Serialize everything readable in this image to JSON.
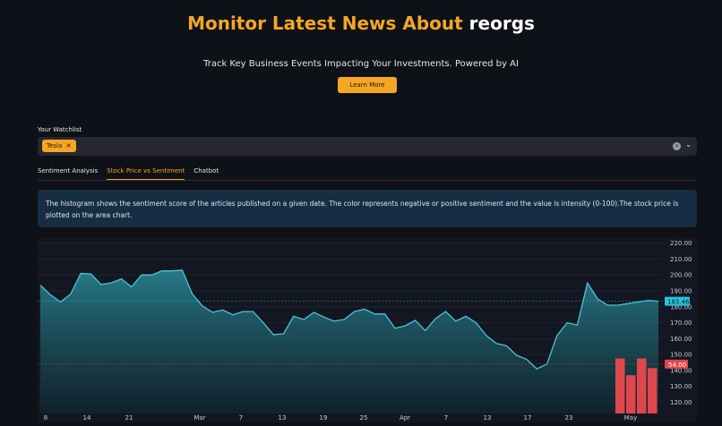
{
  "header": {
    "title_accent": "Monitor Latest News About",
    "title_ticker": "reorgs",
    "subtitle": "Track Key Business Events Impacting Your Investments. Powered by AI",
    "learn_more_label": "Learn More"
  },
  "watchlist": {
    "label": "Your Watchlist",
    "tags": [
      "Tesla"
    ],
    "remove_glyph": "×",
    "clear_glyph": "×",
    "chevron_glyph": "⌄"
  },
  "tabs": [
    {
      "label": "Sentiment Analysis",
      "active": false
    },
    {
      "label": "Stock Price vs Sentiment",
      "active": true
    },
    {
      "label": "Chatbot",
      "active": false
    }
  ],
  "info_text": "The histogram shows the sentiment score of the articles published on a given date. The color represents negative or positive sentiment and the value is intensity (0-100).The stock price is plotted on the area chart.",
  "colors": {
    "accent": "#f5a623",
    "line": "#4fc3d6",
    "negative_bar": "#e0474c",
    "price_marker": "#26c6da",
    "info_bg": "#172d43"
  },
  "chart_data": {
    "type": "area",
    "x_tick_labels": [
      "8",
      "14",
      "21",
      "Mar",
      "7",
      "13",
      "19",
      "25",
      "Apr",
      "7",
      "13",
      "17",
      "23",
      "May"
    ],
    "y_ticks": [
      120,
      130,
      140,
      150,
      160,
      170,
      180,
      190,
      200,
      210,
      220
    ],
    "y_tick_labels": [
      "120.00",
      "130.00",
      "140.00",
      "150.00",
      "160.00",
      "170.00",
      "180.00",
      "190.00",
      "200.00",
      "210.00",
      "220.00"
    ],
    "ylim": [
      113,
      222
    ],
    "price_series": [
      193.5,
      187.5,
      183,
      188,
      201,
      200.5,
      194,
      195,
      197.5,
      192.5,
      200,
      200,
      202.5,
      202.5,
      203,
      188,
      180.5,
      176.5,
      178,
      175,
      177,
      177,
      170,
      162.5,
      163,
      174,
      172,
      176.5,
      173.5,
      171,
      172,
      177,
      178.5,
      175.5,
      175.5,
      166.5,
      168,
      171.5,
      165,
      172.5,
      177,
      171,
      174,
      170,
      162,
      157,
      155.5,
      149.5,
      147,
      141,
      144,
      162,
      170,
      168.5,
      195,
      185,
      181,
      181,
      182,
      183,
      184,
      183.46
    ],
    "last_price": 183.46,
    "last_price_label": "183.46",
    "sentiment_bars": [
      147.5,
      137,
      147.5,
      141.5
    ],
    "sentiment_label": "54.00",
    "sentiment_level": 144
  }
}
